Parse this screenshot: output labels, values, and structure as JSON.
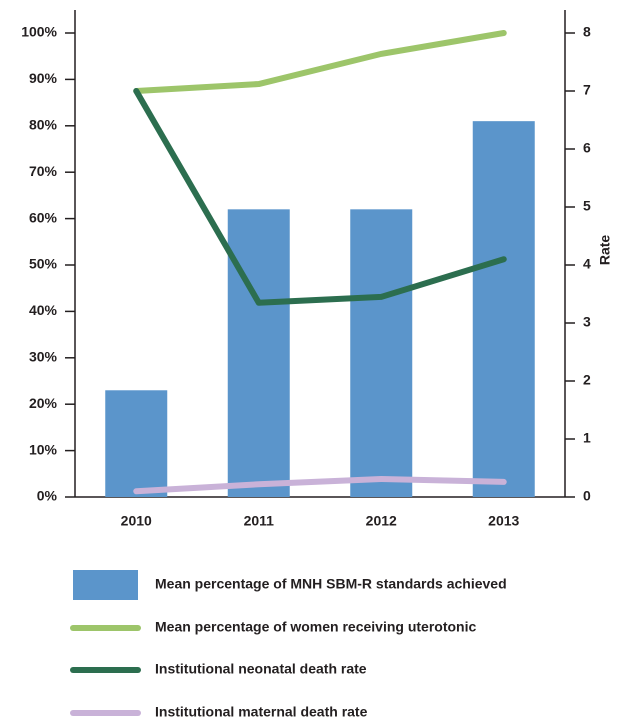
{
  "chart_data": {
    "type": "bar",
    "categories": [
      "2010",
      "2011",
      "2012",
      "2013"
    ],
    "series": [
      {
        "name": "Mean percentage of MNH SBM-R standards achieved",
        "type": "bar",
        "axis": "y",
        "color": "#5b95cb",
        "values": [
          23,
          62,
          62,
          81
        ]
      },
      {
        "name": "Mean percentage of women receiving uterotonic",
        "type": "line",
        "axis": "y",
        "color": "#9dc56a",
        "values": [
          87.5,
          89,
          95.5,
          100
        ]
      },
      {
        "name": "Institutional neonatal death rate",
        "type": "line",
        "axis": "y2",
        "color": "#2c6e4f",
        "values": [
          7.0,
          3.35,
          3.45,
          4.1
        ]
      },
      {
        "name": "Institutional maternal death rate",
        "type": "line",
        "axis": "y2",
        "color": "#c9b2d8",
        "values": [
          0.1,
          0.22,
          0.31,
          0.26
        ]
      }
    ],
    "ylim": [
      0,
      100
    ],
    "yticks": [
      {
        "value": 0,
        "label": "0%"
      },
      {
        "value": 10,
        "label": "10%"
      },
      {
        "value": 20,
        "label": "20%"
      },
      {
        "value": 30,
        "label": "30%"
      },
      {
        "value": 40,
        "label": "40%"
      },
      {
        "value": 50,
        "label": "50%"
      },
      {
        "value": 60,
        "label": "60%"
      },
      {
        "value": 70,
        "label": "70%"
      },
      {
        "value": 80,
        "label": "80%"
      },
      {
        "value": 90,
        "label": "90%"
      },
      {
        "value": 100,
        "label": "100%"
      }
    ],
    "y2lim": [
      0,
      8
    ],
    "y2ticks": [
      0,
      1,
      2,
      3,
      4,
      5,
      6,
      7,
      8
    ],
    "y2label": "Rate",
    "grid": false
  }
}
